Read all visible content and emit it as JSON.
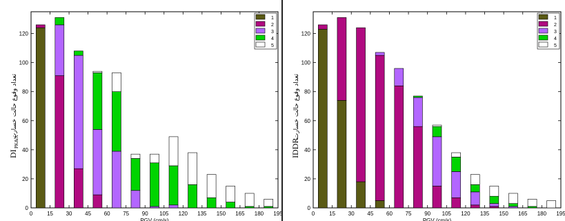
{
  "chart_data": [
    {
      "type": "bar",
      "stacked": true,
      "ylabel_latin": "DI",
      "ylabel_sub": "PK&A",
      "ylabel_persian": "تعداد وقوع حالت خسارت",
      "xlabel": "PGV (cm/s)",
      "xticks": [
        "0",
        "15",
        "30",
        "45",
        "60",
        "75",
        "90",
        "105",
        "120",
        "135",
        "150",
        "165",
        "180",
        "195"
      ],
      "yticks": [
        "0",
        "20",
        "40",
        "60",
        "80",
        "100",
        "120"
      ],
      "xlim": [
        0,
        195
      ],
      "ylim": [
        0,
        135
      ],
      "categories": [
        7.5,
        22.5,
        37.5,
        52.5,
        67.5,
        82.5,
        97.5,
        112.5,
        127.5,
        142.5,
        157.5,
        172.5,
        187.5
      ],
      "legend_position": "top-right",
      "series": [
        {
          "name": "1",
          "color": "#5a5a14",
          "values": [
            124,
            0,
            0,
            0,
            0,
            0,
            0,
            0,
            0,
            0,
            0,
            0,
            0
          ]
        },
        {
          "name": "2",
          "color": "#b00a80",
          "values": [
            2,
            91,
            27,
            9,
            0,
            0,
            0,
            0,
            0,
            0,
            0,
            0,
            0
          ]
        },
        {
          "name": "3",
          "color": "#b366ff",
          "values": [
            0,
            35,
            78,
            45,
            39,
            12,
            1,
            2,
            0,
            0,
            0,
            0,
            0
          ]
        },
        {
          "name": "4",
          "color": "#00d400",
          "values": [
            0,
            5,
            3,
            39,
            41,
            22,
            30,
            27,
            16,
            7,
            4,
            1,
            1
          ]
        },
        {
          "name": "5",
          "color": "#ffffff",
          "values": [
            0,
            0,
            0,
            1,
            13,
            3,
            6,
            20,
            22,
            16,
            11,
            9,
            5
          ]
        }
      ],
      "legend": [
        "1",
        "2",
        "3",
        "4",
        "5"
      ]
    },
    {
      "type": "bar",
      "stacked": true,
      "ylabel_latin": "IDDR",
      "ylabel_sub": "",
      "ylabel_persian": "تعداد وقوع حالت خسارت",
      "xlabel": "PGV (cm/s)",
      "xticks": [
        "0",
        "15",
        "30",
        "45",
        "60",
        "75",
        "90",
        "105",
        "120",
        "135",
        "150",
        "165",
        "180",
        "195"
      ],
      "yticks": [
        "0",
        "20",
        "40",
        "60",
        "80",
        "100",
        "120"
      ],
      "xlim": [
        0,
        195
      ],
      "ylim": [
        0,
        135
      ],
      "categories": [
        7.5,
        22.5,
        37.5,
        52.5,
        67.5,
        82.5,
        97.5,
        112.5,
        127.5,
        142.5,
        157.5,
        172.5,
        187.5
      ],
      "legend_position": "top-right",
      "series": [
        {
          "name": "1",
          "color": "#5a5a14",
          "values": [
            123,
            74,
            18,
            5,
            0,
            0,
            0,
            0,
            0,
            0,
            0,
            0,
            0
          ]
        },
        {
          "name": "2",
          "color": "#b00a80",
          "values": [
            3,
            57,
            106,
            100,
            84,
            56,
            15,
            7,
            2,
            1,
            0,
            0,
            0
          ]
        },
        {
          "name": "3",
          "color": "#b366ff",
          "values": [
            0,
            0,
            0,
            2,
            12,
            20,
            34,
            18,
            9,
            2,
            1,
            0,
            0
          ]
        },
        {
          "name": "4",
          "color": "#00d400",
          "values": [
            0,
            0,
            0,
            0,
            0,
            1,
            7,
            10,
            5,
            5,
            2,
            1,
            0
          ]
        },
        {
          "name": "5",
          "color": "#ffffff",
          "values": [
            0,
            0,
            0,
            0,
            0,
            0,
            1,
            3,
            7,
            7,
            7,
            5,
            5
          ]
        }
      ],
      "legend": [
        "1",
        "2",
        "3",
        "4",
        "5"
      ]
    }
  ]
}
